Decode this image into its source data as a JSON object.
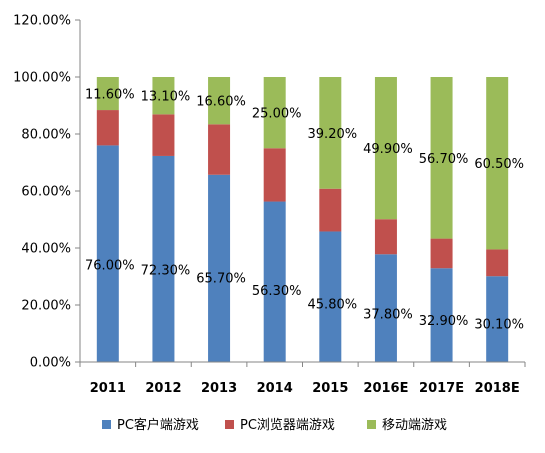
{
  "chart_data": {
    "type": "bar",
    "stacked": true,
    "categories": [
      "2011",
      "2012",
      "2013",
      "2014",
      "2015",
      "2016E",
      "2017E",
      "2018E"
    ],
    "series": [
      {
        "name": "PC客户端游戏",
        "color": "#4f81bd",
        "values": [
          76.0,
          72.3,
          65.7,
          56.3,
          45.8,
          37.8,
          32.9,
          30.1
        ],
        "labels": [
          "76.00%",
          "72.30%",
          "65.70%",
          "56.30%",
          "45.80%",
          "37.80%",
          "32.90%",
          "30.10%"
        ]
      },
      {
        "name": "PC浏览器端游戏",
        "color": "#c0504d",
        "values": [
          12.4,
          14.6,
          17.7,
          18.7,
          15.0,
          12.3,
          10.4,
          9.4
        ],
        "labels": null
      },
      {
        "name": "移动端游戏",
        "color": "#9bbb59",
        "values": [
          11.6,
          13.1,
          16.6,
          25.0,
          39.2,
          49.9,
          56.7,
          60.5
        ],
        "labels": [
          "11.60%",
          "13.10%",
          "16.60%",
          "25.00%",
          "39.20%",
          "49.90%",
          "56.70%",
          "60.50%"
        ]
      }
    ],
    "ylim": [
      0,
      120
    ],
    "yticks": [
      "0.00%",
      "20.00%",
      "40.00%",
      "60.00%",
      "80.00%",
      "100.00%",
      "120.00%"
    ],
    "legend_position": "bottom",
    "grid": false
  }
}
